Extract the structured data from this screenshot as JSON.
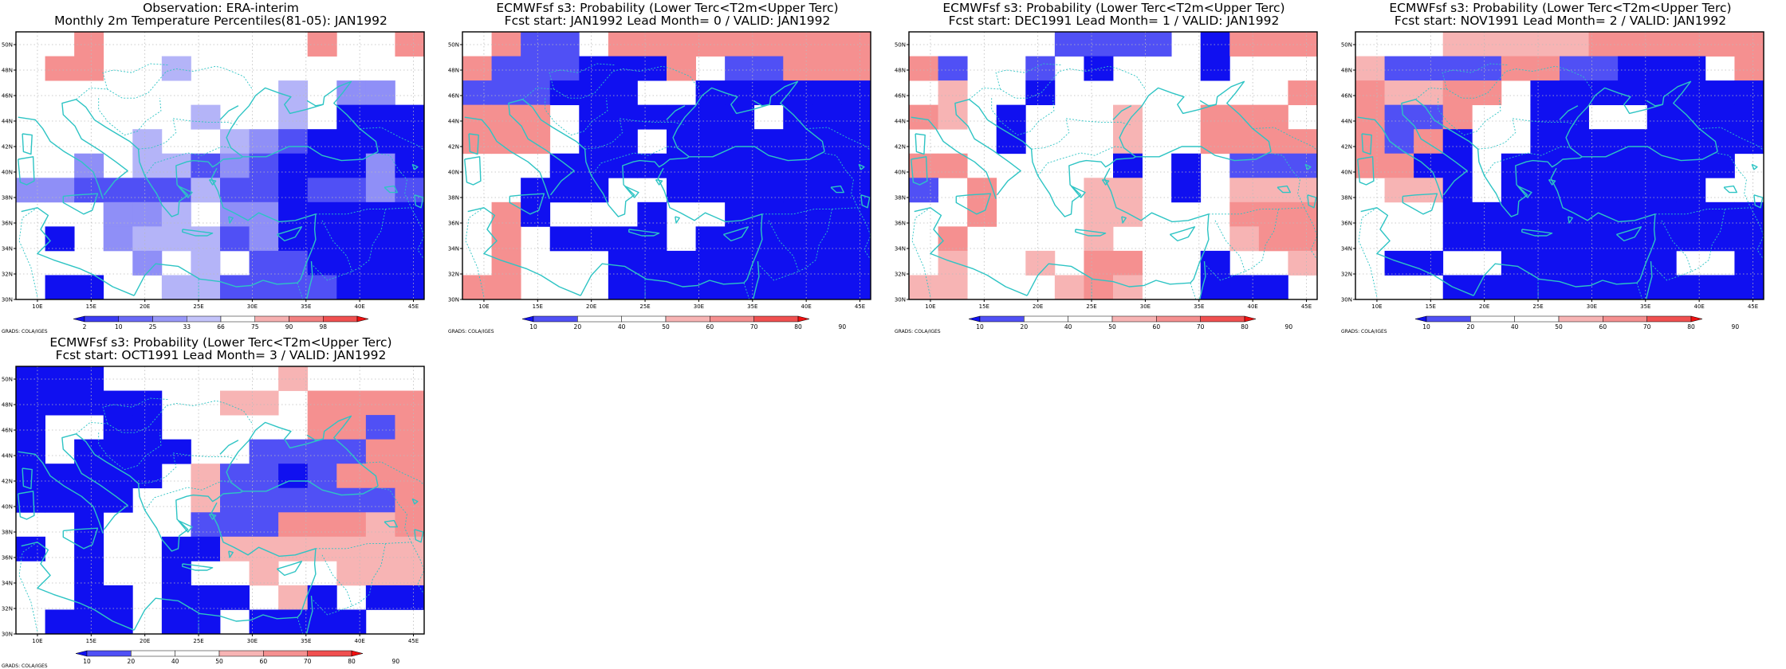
{
  "credit": "GRADS: COLA/IGES",
  "lon_labels": [
    "10E",
    "15E",
    "20E",
    "25E",
    "30E",
    "35E",
    "40E",
    "45E"
  ],
  "lat_labels": [
    "30N",
    "32N",
    "34N",
    "36N",
    "38N",
    "40N",
    "42N",
    "44N",
    "46N",
    "48N",
    "50N"
  ],
  "colors": {
    "coast": "#2ec4c4",
    "frame": "#000000",
    "grid": "#bbbbbb",
    "blue_dark": "#1010f0",
    "blue_mid": "#5050f5",
    "blue_light": "#8f8ff7",
    "blue_pale": "#b4b4f8",
    "red_pale": "#f7b4b4",
    "red_light": "#f59090",
    "red_mid": "#f05050",
    "red_dark": "#f01010"
  },
  "panels": [
    {
      "id": "obs",
      "title_line1": "Observation: ERA-interim",
      "title_line2": "Monthly 2m Temperature Percentiles(81-05): JAN1992",
      "colorbar_labels": [
        "2",
        "10",
        "25",
        "33",
        "66",
        "75",
        "90",
        "98"
      ],
      "colorbar_colors": [
        "#1010f0",
        "#3c3cf3",
        "#6a6af6",
        "#9898f8",
        "#c4c4fa",
        "#ffffff",
        "#f6b0b0",
        "#f28080",
        "#f05050",
        "#f01010"
      ],
      "grid": [
        "..R.......R..R",
        ".RR..P........",
        ".........P.LL.",
        "......P..P.DDD",
        "....P..PLMDDDD",
        "..L.PPMLMDDDLD",
        "LLMMMMPMMDMMLM",
        "...LLP.LLDDDDD",
        ".D.LPPPMLDDDDD",
        "....L.P.MMDDDD",
        ".DD..PPMMMMDDD"
      ]
    },
    {
      "id": "lead0",
      "title_line1": "ECMWFsf s3: Probability (Lower Terc<T2m<Upper Terc)",
      "title_line2": "Fcst start: JAN1992   Lead Month= 0 / VALID: JAN1992",
      "colorbar_labels": [
        "10",
        "20",
        "40",
        "50",
        "60",
        "70",
        "80",
        "90"
      ],
      "colorbar_colors": [
        "#1010f0",
        "#5050f5",
        "#ffffff",
        "#ffffff",
        "#f7b4b4",
        "#f59090",
        "#f05050",
        "#f01010"
      ],
      "grid": [
        ".RMM.RRRRRRRRR",
        "RMMMDDDR.MMRRR",
        "MMMDDD..DDDDDD",
        "RRR.DDDDDD.DDD",
        "RRR.DD.DDDDDDD",
        "...DDDDDDDDDDD",
        "..DDD..DDDDDDD",
        ".RD...D..DDDDD",
        ".R.DDDD.DDDDDD",
        ".R...DDDDDDDDD",
        "RR...DDDDDDDDD"
      ]
    },
    {
      "id": "lead1",
      "title_line1": "ECMWFsf s3: Probability (Lower Terc<T2m<Upper Terc)",
      "title_line2": "Fcst start: DEC1991   Lead Month= 1 / VALID: JAN1992",
      "colorbar_labels": [
        "10",
        "20",
        "40",
        "50",
        "60",
        "70",
        "80",
        "90"
      ],
      "colorbar_colors": [
        "#1010f0",
        "#5050f5",
        "#ffffff",
        "#ffffff",
        "#f7b4b4",
        "#f59090",
        "#f05050",
        "#f01010"
      ],
      "grid": [
        ".....MMMM.DRRR",
        "RM..M.D...D...",
        ".P..D........R",
        "RP.D...P..RRR.",
        "...D...P..RRRR",
        "RR.....D.D.MMM",
        "M.R...PP.D.PPP",
        "..R...PP...RRR",
        ".R....P....PRR",
        ".P..P.RR..D..P",
        "PP...PRP..DDD."
      ]
    },
    {
      "id": "lead2",
      "title_line1": "ECMWFsf s3: Probability (Lower Terc<T2m<Upper Terc)",
      "title_line2": "Fcst start: NOV1991   Lead Month= 2 / VALID: JAN1992",
      "colorbar_labels": [
        "10",
        "20",
        "40",
        "50",
        "60",
        "70",
        "80",
        "90"
      ],
      "colorbar_colors": [
        "#1010f0",
        "#5050f5",
        "#ffffff",
        "#ffffff",
        "#f7b4b4",
        "#f59090",
        "#f05050",
        "#f01010"
      ],
      "grid": [
        "...PPPPPRRRRRR",
        "PMMMMRRMMDDD.R",
        "RPPRR.DDDDDDDD",
        "RMMR..DD..DDDD",
        "RMRD..DDDDDDDD",
        "RRDD.DDDDDDDD.",
        ".PPD.DDDDDDD..",
        "...DDDDDDDDDDD",
        "...DDDDDDDDDDD",
        ".DD..DDDDDD..D",
        "...DDDDDDDDDDD"
      ]
    },
    {
      "id": "lead3",
      "title_line1": "ECMWFsf s3: Probability (Lower Terc<T2m<Upper Terc)",
      "title_line2": "Fcst start: OCT1991   Lead Month= 3 / VALID: JAN1992",
      "colorbar_labels": [
        "10",
        "20",
        "40",
        "50",
        "60",
        "70",
        "80",
        "90"
      ],
      "colorbar_colors": [
        "#1010f0",
        "#5050f5",
        "#ffffff",
        "#ffffff",
        "#f7b4b4",
        "#f59090",
        "#f05050",
        "#f01010"
      ],
      "grid": [
        "DDD......P....",
        "DDDDD..PP.RRRR",
        "D..DD.....RRMR",
        "D.DDDD..MMMMRR",
        "DDDDD.PMMDMRRR",
        "DDDD..PMMMMMMR",
        "..D...MMMRRRPR",
        "D.D..DDPPPPPPP",
        "..D..D..P..PPP",
        "..DD.DDD.PD.DD",
        ".DDD.DD.DDDD.."
      ]
    }
  ]
}
